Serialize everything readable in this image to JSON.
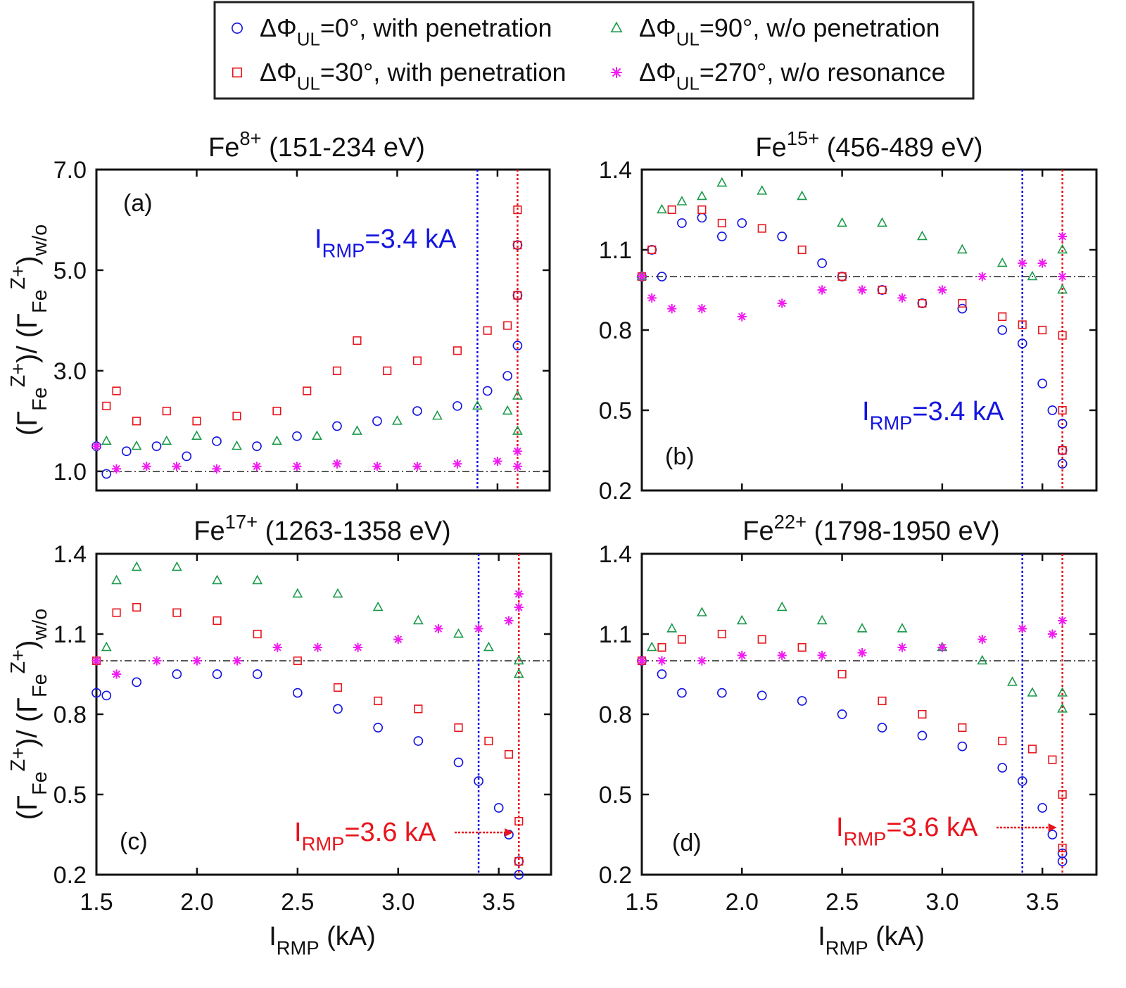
{
  "legend": {
    "entries": [
      {
        "parts": [
          {
            "t": "ΔΦ"
          },
          {
            "t": "UL",
            "pos": "sub"
          },
          {
            "t": "=0°, with penetration"
          }
        ],
        "color": "#1414e0",
        "marker": "circle"
      },
      {
        "parts": [
          {
            "t": "ΔΦ"
          },
          {
            "t": "UL",
            "pos": "sub"
          },
          {
            "t": "=30°, with penetration"
          }
        ],
        "color": "#e8141c",
        "marker": "square"
      },
      {
        "parts": [
          {
            "t": "ΔΦ"
          },
          {
            "t": "UL",
            "pos": "sub"
          },
          {
            "t": "=90°, w/o penetration"
          }
        ],
        "color": "#1a9a4a",
        "marker": "triangle"
      },
      {
        "parts": [
          {
            "t": "ΔΦ"
          },
          {
            "t": "UL",
            "pos": "sub"
          },
          {
            "t": "=270°, w/o resonance"
          }
        ],
        "color": "#f01cf0",
        "marker": "star"
      }
    ]
  },
  "chart_data": [
    {
      "type": "scatter",
      "title": [
        {
          "t": "Fe"
        },
        {
          "t": "8+",
          "pos": "sup"
        },
        {
          "t": " (151-234 eV)"
        }
      ],
      "panel_label": "(a)",
      "ylabel": [
        {
          "t": "(Γ"
        },
        {
          "t": "Fe",
          "pos": "sub"
        },
        {
          "t": "Z+",
          "pos": "sup"
        },
        {
          "t": ")/ (Γ"
        },
        {
          "t": "Fe",
          "pos": "sub"
        },
        {
          "t": "Z+",
          "pos": "sup"
        },
        {
          "t": ")"
        },
        {
          "t": "w/o",
          "pos": "sub"
        }
      ],
      "annotation": {
        "parts": [
          {
            "t": "I"
          },
          {
            "t": "RMP",
            "pos": "sub"
          },
          {
            "t": "=3.4 kA"
          }
        ],
        "color": "#1414e0",
        "arrow": false
      },
      "xlim": [
        1.5,
        3.76
      ],
      "xticks": [
        1.5,
        {
          "value": 2,
          "label": "2.0"
        },
        2.5,
        {
          "value": 3,
          "label": "3.0"
        },
        3.5
      ],
      "ylim": [
        0.62,
        7.0
      ],
      "yticks": [
        {
          "value": 1,
          "label": "1.0"
        },
        {
          "value": 3,
          "label": "3.0"
        },
        {
          "value": 5,
          "label": "5.0"
        },
        {
          "value": 7,
          "label": "7.0"
        }
      ],
      "vlines": [
        {
          "x": 3.4,
          "color": "#1414e0"
        },
        {
          "x": 3.6,
          "color": "#e8141c"
        }
      ],
      "hline": 1.0,
      "series": [
        {
          "color": "#1414e0",
          "marker": "circle",
          "x": [
            1.5,
            1.55,
            1.65,
            1.8,
            1.95,
            2.1,
            2.3,
            2.5,
            2.7,
            2.9,
            3.1,
            3.3,
            3.45,
            3.55,
            3.6,
            3.6,
            3.6
          ],
          "values": [
            1.5,
            0.95,
            1.4,
            1.5,
            1.3,
            1.6,
            1.5,
            1.7,
            1.9,
            2.0,
            2.2,
            2.3,
            2.6,
            2.9,
            3.5,
            4.5,
            5.5
          ]
        },
        {
          "color": "#e8141c",
          "marker": "square",
          "x": [
            1.55,
            1.6,
            1.7,
            1.85,
            2.0,
            2.2,
            2.4,
            2.55,
            2.7,
            2.8,
            2.95,
            3.1,
            3.3,
            3.45,
            3.55,
            3.6,
            3.6,
            3.6
          ],
          "values": [
            2.3,
            2.6,
            2.0,
            2.2,
            2.0,
            2.1,
            2.2,
            2.6,
            3.0,
            3.6,
            3.0,
            3.2,
            3.4,
            3.8,
            3.9,
            4.5,
            5.5,
            6.2
          ]
        },
        {
          "color": "#1a9a4a",
          "marker": "triangle",
          "x": [
            1.55,
            1.7,
            1.85,
            2.0,
            2.2,
            2.4,
            2.6,
            2.8,
            3.0,
            3.2,
            3.4,
            3.55,
            3.6,
            3.6
          ],
          "values": [
            1.6,
            1.5,
            1.6,
            1.7,
            1.5,
            1.6,
            1.7,
            1.8,
            2.0,
            2.1,
            2.3,
            2.2,
            1.8,
            2.5
          ]
        },
        {
          "color": "#f01cf0",
          "marker": "star",
          "x": [
            1.5,
            1.6,
            1.75,
            1.9,
            2.1,
            2.3,
            2.5,
            2.7,
            2.9,
            3.1,
            3.3,
            3.5,
            3.6,
            3.6
          ],
          "values": [
            1.5,
            1.05,
            1.1,
            1.1,
            1.05,
            1.1,
            1.1,
            1.15,
            1.1,
            1.1,
            1.15,
            1.2,
            1.1,
            1.4
          ]
        }
      ]
    },
    {
      "type": "scatter",
      "title": [
        {
          "t": "Fe"
        },
        {
          "t": "15+",
          "pos": "sup"
        },
        {
          "t": " (456-489 eV)"
        }
      ],
      "panel_label": "(b)",
      "annotation": {
        "parts": [
          {
            "t": "I"
          },
          {
            "t": "RMP",
            "pos": "sub"
          },
          {
            "t": "=3.4 kA"
          }
        ],
        "color": "#1414e0",
        "arrow": false
      },
      "xlim": [
        1.5,
        3.77
      ],
      "xticks": [
        1.5,
        {
          "value": 2,
          "label": "2.0"
        },
        2.5,
        {
          "value": 3,
          "label": "3.0"
        },
        3.5
      ],
      "ylim": [
        0.2,
        1.4
      ],
      "yticks": [
        0.2,
        0.5,
        0.8,
        1.1,
        1.4
      ],
      "vlines": [
        {
          "x": 3.4,
          "color": "#1414e0"
        },
        {
          "x": 3.6,
          "color": "#e8141c"
        }
      ],
      "hline": 1.0,
      "series": [
        {
          "color": "#1414e0",
          "marker": "circle",
          "x": [
            1.5,
            1.55,
            1.6,
            1.7,
            1.8,
            1.9,
            2.0,
            2.2,
            2.4,
            2.5,
            2.7,
            2.9,
            3.1,
            3.3,
            3.4,
            3.5,
            3.55,
            3.6,
            3.6,
            3.6
          ],
          "values": [
            1.0,
            1.1,
            1.0,
            1.2,
            1.22,
            1.15,
            1.2,
            1.15,
            1.05,
            1.0,
            0.95,
            0.9,
            0.88,
            0.8,
            0.75,
            0.6,
            0.5,
            0.45,
            0.35,
            0.3
          ]
        },
        {
          "color": "#e8141c",
          "marker": "square",
          "x": [
            1.5,
            1.55,
            1.65,
            1.8,
            1.9,
            2.1,
            2.3,
            2.5,
            2.7,
            2.9,
            3.1,
            3.3,
            3.4,
            3.5,
            3.6,
            3.6,
            3.6
          ],
          "values": [
            1.0,
            1.1,
            1.25,
            1.25,
            1.2,
            1.18,
            1.1,
            1.0,
            0.95,
            0.9,
            0.9,
            0.85,
            0.82,
            0.8,
            0.78,
            0.5,
            0.35
          ]
        },
        {
          "color": "#1a9a4a",
          "marker": "triangle",
          "x": [
            1.5,
            1.6,
            1.7,
            1.8,
            1.9,
            2.1,
            2.3,
            2.5,
            2.7,
            2.9,
            3.1,
            3.3,
            3.45,
            3.6,
            3.6
          ],
          "values": [
            1.0,
            1.25,
            1.28,
            1.3,
            1.35,
            1.32,
            1.3,
            1.2,
            1.2,
            1.15,
            1.1,
            1.05,
            1.0,
            0.95,
            1.1
          ]
        },
        {
          "color": "#f01cf0",
          "marker": "star",
          "x": [
            1.5,
            1.55,
            1.65,
            1.8,
            2.0,
            2.2,
            2.4,
            2.6,
            2.8,
            3.0,
            3.2,
            3.4,
            3.5,
            3.6,
            3.6
          ],
          "values": [
            1.0,
            0.92,
            0.88,
            0.88,
            0.85,
            0.9,
            0.95,
            0.95,
            0.92,
            0.95,
            1.0,
            1.05,
            1.05,
            1.0,
            1.15
          ]
        }
      ]
    },
    {
      "type": "scatter",
      "title": [
        {
          "t": "Fe"
        },
        {
          "t": "17+",
          "pos": "sup"
        },
        {
          "t": " (1263-1358 eV)"
        }
      ],
      "panel_label": "(c)",
      "ylabel": [
        {
          "t": "(Γ"
        },
        {
          "t": "Fe",
          "pos": "sub"
        },
        {
          "t": "Z+",
          "pos": "sup"
        },
        {
          "t": ")/ (Γ"
        },
        {
          "t": "Fe",
          "pos": "sub"
        },
        {
          "t": "Z+",
          "pos": "sup"
        },
        {
          "t": ")"
        },
        {
          "t": "w/o",
          "pos": "sub"
        }
      ],
      "xlabel": [
        {
          "t": "I"
        },
        {
          "t": "RMP",
          "pos": "sub"
        },
        {
          "t": " (kA)"
        }
      ],
      "annotation": {
        "parts": [
          {
            "t": "I"
          },
          {
            "t": "RMP",
            "pos": "sub"
          },
          {
            "t": "=3.6 kA"
          }
        ],
        "color": "#e8141c",
        "arrow": true
      },
      "xlim": [
        1.5,
        3.76
      ],
      "xticks": [
        1.5,
        {
          "value": 2,
          "label": "2.0"
        },
        2.5,
        {
          "value": 3,
          "label": "3.0"
        },
        3.5
      ],
      "ylim": [
        0.2,
        1.4
      ],
      "yticks": [
        0.2,
        0.5,
        0.8,
        1.1,
        1.4
      ],
      "vlines": [
        {
          "x": 3.4,
          "color": "#1414e0"
        },
        {
          "x": 3.6,
          "color": "#e8141c"
        }
      ],
      "hline": 1.0,
      "series": [
        {
          "color": "#1414e0",
          "marker": "circle",
          "x": [
            1.5,
            1.55,
            1.7,
            1.9,
            2.1,
            2.3,
            2.5,
            2.7,
            2.9,
            3.1,
            3.3,
            3.4,
            3.5,
            3.55,
            3.6,
            3.6
          ],
          "values": [
            0.88,
            0.87,
            0.92,
            0.95,
            0.95,
            0.95,
            0.88,
            0.82,
            0.75,
            0.7,
            0.62,
            0.55,
            0.45,
            0.35,
            0.25,
            0.2
          ]
        },
        {
          "color": "#e8141c",
          "marker": "square",
          "x": [
            1.5,
            1.6,
            1.7,
            1.9,
            2.1,
            2.3,
            2.5,
            2.7,
            2.9,
            3.1,
            3.3,
            3.45,
            3.55,
            3.6,
            3.6
          ],
          "values": [
            1.0,
            1.18,
            1.2,
            1.18,
            1.15,
            1.1,
            1.0,
            0.9,
            0.85,
            0.82,
            0.75,
            0.7,
            0.65,
            0.4,
            0.25
          ]
        },
        {
          "color": "#1a9a4a",
          "marker": "triangle",
          "x": [
            1.55,
            1.6,
            1.7,
            1.9,
            2.1,
            2.3,
            2.5,
            2.7,
            2.9,
            3.1,
            3.3,
            3.45,
            3.6,
            3.6
          ],
          "values": [
            1.05,
            1.3,
            1.35,
            1.35,
            1.3,
            1.3,
            1.25,
            1.25,
            1.2,
            1.15,
            1.1,
            1.05,
            0.95,
            1.0
          ]
        },
        {
          "color": "#f01cf0",
          "marker": "star",
          "x": [
            1.5,
            1.6,
            1.8,
            2.0,
            2.2,
            2.4,
            2.6,
            2.8,
            3.0,
            3.2,
            3.4,
            3.55,
            3.6,
            3.6
          ],
          "values": [
            1.0,
            0.95,
            1.0,
            1.0,
            1.0,
            1.05,
            1.05,
            1.05,
            1.08,
            1.12,
            1.12,
            1.15,
            1.2,
            1.25
          ]
        }
      ]
    },
    {
      "type": "scatter",
      "title": [
        {
          "t": "Fe"
        },
        {
          "t": "22+",
          "pos": "sup"
        },
        {
          "t": " (1798-1950 eV)"
        }
      ],
      "panel_label": "(d)",
      "xlabel": [
        {
          "t": "I"
        },
        {
          "t": "RMP",
          "pos": "sub"
        },
        {
          "t": " (kA)"
        }
      ],
      "annotation": {
        "parts": [
          {
            "t": "I"
          },
          {
            "t": "RMP",
            "pos": "sub"
          },
          {
            "t": "=3.6 kA"
          }
        ],
        "color": "#e8141c",
        "arrow": true
      },
      "xlim": [
        1.5,
        3.77
      ],
      "xticks": [
        1.5,
        {
          "value": 2,
          "label": "2.0"
        },
        2.5,
        {
          "value": 3,
          "label": "3.0"
        },
        3.5
      ],
      "ylim": [
        0.2,
        1.4
      ],
      "yticks": [
        0.2,
        0.5,
        0.8,
        1.1,
        1.4
      ],
      "vlines": [
        {
          "x": 3.4,
          "color": "#1414e0"
        },
        {
          "x": 3.6,
          "color": "#e8141c"
        }
      ],
      "hline": 1.0,
      "series": [
        {
          "color": "#1414e0",
          "marker": "circle",
          "x": [
            1.5,
            1.6,
            1.7,
            1.9,
            2.1,
            2.3,
            2.5,
            2.7,
            2.9,
            3.1,
            3.3,
            3.4,
            3.5,
            3.55,
            3.6,
            3.6
          ],
          "values": [
            1.0,
            0.95,
            0.88,
            0.88,
            0.87,
            0.85,
            0.8,
            0.75,
            0.72,
            0.68,
            0.6,
            0.55,
            0.45,
            0.35,
            0.28,
            0.25
          ]
        },
        {
          "color": "#e8141c",
          "marker": "square",
          "x": [
            1.5,
            1.6,
            1.7,
            1.9,
            2.1,
            2.3,
            2.5,
            2.7,
            2.9,
            3.1,
            3.3,
            3.45,
            3.55,
            3.6,
            3.6
          ],
          "values": [
            1.0,
            1.05,
            1.08,
            1.1,
            1.08,
            1.05,
            0.95,
            0.85,
            0.8,
            0.75,
            0.7,
            0.67,
            0.63,
            0.5,
            0.3
          ]
        },
        {
          "color": "#1a9a4a",
          "marker": "triangle",
          "x": [
            1.55,
            1.65,
            1.8,
            2.0,
            2.2,
            2.4,
            2.6,
            2.8,
            3.0,
            3.2,
            3.35,
            3.45,
            3.6,
            3.6
          ],
          "values": [
            1.05,
            1.12,
            1.18,
            1.15,
            1.2,
            1.15,
            1.12,
            1.12,
            1.05,
            1.0,
            0.92,
            0.88,
            0.82,
            0.88
          ]
        },
        {
          "color": "#f01cf0",
          "marker": "star",
          "x": [
            1.5,
            1.6,
            1.8,
            2.0,
            2.2,
            2.4,
            2.6,
            2.8,
            3.0,
            3.2,
            3.4,
            3.55,
            3.6
          ],
          "values": [
            1.0,
            1.0,
            1.0,
            1.02,
            1.02,
            1.02,
            1.03,
            1.05,
            1.05,
            1.08,
            1.12,
            1.1,
            1.15
          ]
        }
      ]
    }
  ]
}
